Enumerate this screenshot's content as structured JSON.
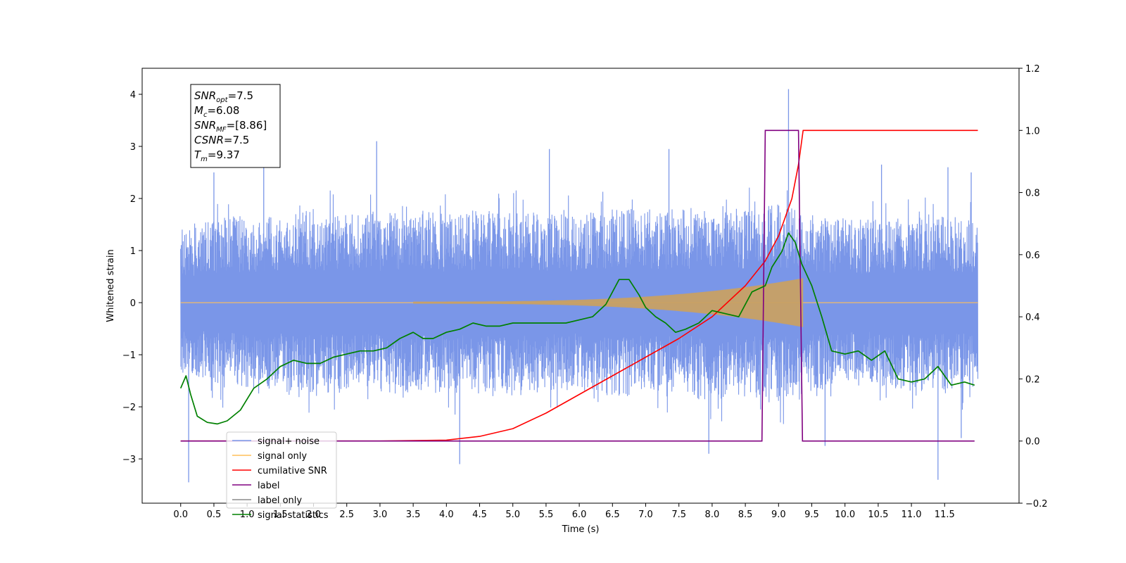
{
  "chart_data": {
    "type": "line",
    "title": "",
    "xlabel": "Time (s)",
    "ylabel": "Whitened strain",
    "xlim": [
      -0.58,
      12.62
    ],
    "ylim": [
      -3.85,
      4.5
    ],
    "y2lim": [
      -0.2,
      1.2
    ],
    "grid": false,
    "legend_position": "lower-left",
    "x_ticks": [
      "0.0",
      "0.5",
      "1.0",
      "1.5",
      "2.0",
      "2.5",
      "3.0",
      "3.5",
      "4.0",
      "4.5",
      "5.0",
      "5.5",
      "6.0",
      "6.5",
      "7.0",
      "7.5",
      "8.0",
      "8.5",
      "9.0",
      "9.5",
      "10.0",
      "10.5",
      "11.0",
      "11.5"
    ],
    "y_ticks": [
      "−3",
      "−2",
      "−1",
      "0",
      "1",
      "2",
      "3",
      "4"
    ],
    "y2_ticks": [
      "−0.2",
      "0.0",
      "0.2",
      "0.4",
      "0.6",
      "0.8",
      "1.0",
      "1.2"
    ],
    "annotation": {
      "lines": [
        {
          "base": "SNR",
          "sub": "opt",
          "rest": "=7.5"
        },
        {
          "base": "M",
          "sub": "c",
          "rest": "=6.08"
        },
        {
          "base": "SNR",
          "sub": "MF",
          "rest": "=[8.86]"
        },
        {
          "base": "CSNR",
          "sub": "",
          "rest": "=7.5"
        },
        {
          "base": "T",
          "sub": "m",
          "rest": "=9.37"
        }
      ]
    },
    "series": [
      {
        "name": "signal+ noise",
        "axis": "left",
        "color": "#7a96e8",
        "x_range": [
          0.0,
          12.0
        ],
        "envelope_upper": [
          1.4,
          1.6,
          1.7,
          1.7,
          1.8,
          1.7,
          1.7,
          1.8,
          1.7,
          1.8,
          1.8,
          1.7,
          1.7,
          1.8,
          1.8,
          1.8,
          1.9,
          1.8,
          1.9,
          1.7,
          1.6,
          1.6,
          1.7,
          1.7,
          1.6
        ],
        "envelope_lower": [
          -1.4,
          -1.6,
          -1.7,
          -1.7,
          -1.8,
          -1.7,
          -1.7,
          -1.8,
          -1.7,
          -1.8,
          -1.8,
          -1.7,
          -1.7,
          -1.8,
          -1.8,
          -1.8,
          -1.9,
          -1.8,
          -1.9,
          -1.7,
          -1.6,
          -1.6,
          -1.7,
          -1.7,
          -1.6
        ],
        "spikes": [
          [
            0.12,
            -3.45
          ],
          [
            0.5,
            2.5
          ],
          [
            1.25,
            2.6
          ],
          [
            2.95,
            3.1
          ],
          [
            4.2,
            -3.1
          ],
          [
            5.55,
            2.95
          ],
          [
            7.35,
            2.95
          ],
          [
            7.95,
            -2.9
          ],
          [
            9.15,
            4.1
          ],
          [
            9.7,
            -2.75
          ],
          [
            10.55,
            2.65
          ],
          [
            11.4,
            -3.4
          ],
          [
            11.55,
            2.6
          ],
          [
            11.75,
            -2.6
          ],
          [
            11.9,
            2.5
          ]
        ]
      },
      {
        "name": "signal only",
        "axis": "left",
        "color": "#ffbf59",
        "chirp_start": 3.5,
        "chirp_end": 9.37,
        "chirp_max_amp": 0.45
      },
      {
        "name": "cumilative SNR",
        "axis": "right",
        "color": "#ff0000",
        "x": [
          0.0,
          3.0,
          4.0,
          4.5,
          5.0,
          5.5,
          6.0,
          6.5,
          7.0,
          7.5,
          8.0,
          8.5,
          8.8,
          9.0,
          9.2,
          9.3,
          9.37,
          12.0
        ],
        "y": [
          0.0,
          0.0,
          0.003,
          0.015,
          0.04,
          0.09,
          0.15,
          0.21,
          0.27,
          0.33,
          0.4,
          0.5,
          0.58,
          0.66,
          0.78,
          0.89,
          1.0,
          1.0
        ]
      },
      {
        "name": "label",
        "axis": "right",
        "color": "#800080",
        "x": [
          0.0,
          8.75,
          8.8,
          9.3,
          9.36,
          11.95
        ],
        "y": [
          0.0,
          0.0,
          1.0,
          1.0,
          0.0,
          0.0
        ]
      },
      {
        "name": "label only",
        "axis": "right",
        "color": "#8a8a8a",
        "x": [],
        "y": []
      },
      {
        "name": "signal statistics",
        "axis": "right",
        "color": "#008000",
        "x": [
          0.0,
          0.08,
          0.15,
          0.25,
          0.4,
          0.55,
          0.7,
          0.9,
          1.1,
          1.3,
          1.5,
          1.7,
          1.9,
          2.1,
          2.3,
          2.5,
          2.7,
          2.9,
          3.1,
          3.3,
          3.5,
          3.65,
          3.8,
          4.0,
          4.2,
          4.4,
          4.6,
          4.8,
          5.0,
          5.2,
          5.4,
          5.6,
          5.8,
          6.0,
          6.2,
          6.4,
          6.6,
          6.75,
          6.9,
          7.0,
          7.15,
          7.3,
          7.45,
          7.6,
          7.8,
          8.0,
          8.2,
          8.4,
          8.6,
          8.8,
          8.9,
          9.05,
          9.15,
          9.25,
          9.35,
          9.5,
          9.65,
          9.8,
          10.0,
          10.2,
          10.4,
          10.6,
          10.8,
          11.0,
          11.2,
          11.4,
          11.6,
          11.8,
          11.95
        ],
        "y": [
          0.17,
          0.21,
          0.15,
          0.08,
          0.06,
          0.055,
          0.065,
          0.1,
          0.17,
          0.2,
          0.24,
          0.26,
          0.25,
          0.25,
          0.27,
          0.28,
          0.29,
          0.29,
          0.3,
          0.33,
          0.35,
          0.33,
          0.33,
          0.35,
          0.36,
          0.38,
          0.37,
          0.37,
          0.38,
          0.38,
          0.38,
          0.38,
          0.38,
          0.39,
          0.4,
          0.44,
          0.52,
          0.52,
          0.47,
          0.43,
          0.4,
          0.38,
          0.35,
          0.36,
          0.38,
          0.42,
          0.41,
          0.4,
          0.48,
          0.5,
          0.56,
          0.61,
          0.67,
          0.64,
          0.57,
          0.5,
          0.4,
          0.29,
          0.28,
          0.29,
          0.26,
          0.29,
          0.2,
          0.19,
          0.2,
          0.24,
          0.18,
          0.19,
          0.18
        ]
      }
    ]
  }
}
